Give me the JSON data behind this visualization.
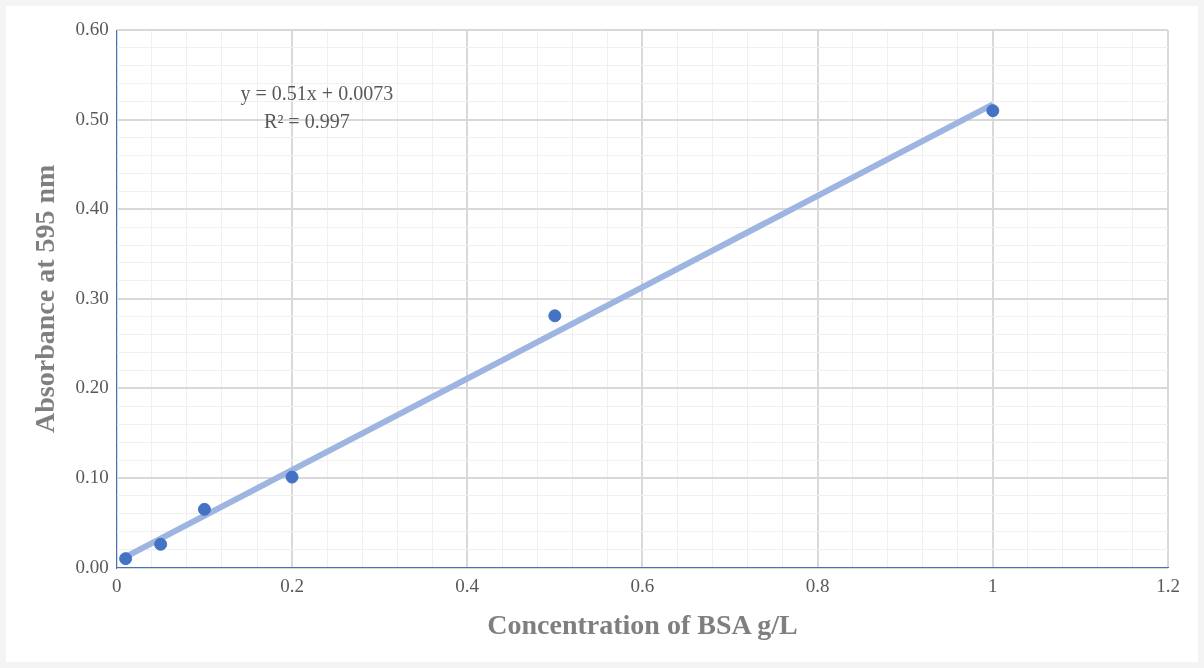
{
  "chart_data": {
    "type": "scatter",
    "xlabel": "Concentration of BSA g/L",
    "ylabel": "Absorbance at 595 nm",
    "annotations": [
      "y = 0.51x + 0.0073",
      "R² = 0.997"
    ],
    "series": [
      {
        "type": "scatter",
        "color": "#4472c4",
        "x": [
          0.01,
          0.05,
          0.1,
          0.2,
          0.5,
          1
        ],
        "values": [
          0.01,
          0.026,
          0.065,
          0.101,
          0.281,
          0.51
        ],
        "marker": "circle"
      },
      {
        "type": "line",
        "color": "#9db5e0",
        "x": [
          0.01,
          1
        ],
        "values": [
          0.012,
          0.517
        ],
        "marker": "none"
      }
    ],
    "xlim": [
      0,
      1.2
    ],
    "xticks": [
      0,
      {
        "value": 0.04,
        "label": null
      },
      {
        "value": 0.08,
        "label": null
      },
      {
        "value": 0.12,
        "label": null
      },
      {
        "value": 0.16,
        "label": null
      },
      0.2,
      {
        "value": 0.24,
        "label": null
      },
      {
        "value": 0.28,
        "label": null
      },
      {
        "value": 0.32,
        "label": null
      },
      {
        "value": 0.36,
        "label": null
      },
      0.4,
      {
        "value": 0.44,
        "label": null
      },
      {
        "value": 0.48,
        "label": null
      },
      {
        "value": 0.52,
        "label": null
      },
      {
        "value": 0.56,
        "label": null
      },
      0.6,
      {
        "value": 0.64,
        "label": null
      },
      {
        "value": 0.68,
        "label": null
      },
      {
        "value": 0.72,
        "label": null
      },
      {
        "value": 0.76,
        "label": null
      },
      0.8,
      {
        "value": 0.84,
        "label": null
      },
      {
        "value": 0.88,
        "label": null
      },
      {
        "value": 0.92,
        "label": null
      },
      {
        "value": 0.96,
        "label": null
      },
      {
        "value": 1,
        "label": "1"
      },
      {
        "value": 1.04,
        "label": null
      },
      {
        "value": 1.08,
        "label": null
      },
      {
        "value": 1.12,
        "label": null
      },
      {
        "value": 1.16,
        "label": null
      },
      1.2
    ],
    "ylim": [
      0,
      0.6
    ],
    "yticks": [
      {
        "value": 0,
        "label": "0.00"
      },
      {
        "value": 0.02,
        "label": null
      },
      {
        "value": 0.04,
        "label": null
      },
      {
        "value": 0.06,
        "label": null
      },
      {
        "value": 0.08,
        "label": null
      },
      {
        "value": 0.1,
        "label": "0.10"
      },
      {
        "value": 0.12,
        "label": null
      },
      {
        "value": 0.14,
        "label": null
      },
      {
        "value": 0.16,
        "label": null
      },
      {
        "value": 0.18,
        "label": null
      },
      {
        "value": 0.2,
        "label": "0.20"
      },
      {
        "value": 0.22,
        "label": null
      },
      {
        "value": 0.24,
        "label": null
      },
      {
        "value": 0.26,
        "label": null
      },
      {
        "value": 0.28,
        "label": null
      },
      {
        "value": 0.3,
        "label": "0.30"
      },
      {
        "value": 0.32,
        "label": null
      },
      {
        "value": 0.34,
        "label": null
      },
      {
        "value": 0.36,
        "label": null
      },
      {
        "value": 0.38,
        "label": null
      },
      {
        "value": 0.4,
        "label": "0.40"
      },
      {
        "value": 0.42,
        "label": null
      },
      {
        "value": 0.44,
        "label": null
      },
      {
        "value": 0.46,
        "label": null
      },
      {
        "value": 0.48,
        "label": null
      },
      {
        "value": 0.5,
        "label": "0.50"
      },
      {
        "value": 0.52,
        "label": null
      },
      {
        "value": 0.54,
        "label": null
      },
      {
        "value": 0.56,
        "label": null
      },
      {
        "value": 0.58,
        "label": null
      },
      {
        "value": 0.6,
        "label": "0.60"
      }
    ],
    "grid": true,
    "legend": false
  }
}
